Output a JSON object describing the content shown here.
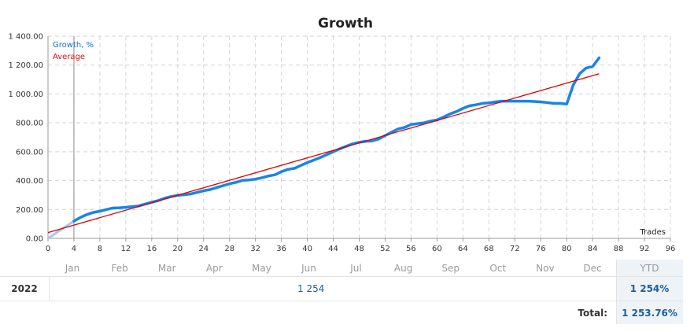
{
  "chart_data": {
    "type": "line",
    "title": "Growth",
    "xlabel": "Trades",
    "ylabel": "",
    "xlim": [
      0,
      96
    ],
    "ylim": [
      0,
      1400
    ],
    "xticks": [
      0,
      4,
      8,
      12,
      16,
      20,
      24,
      28,
      32,
      36,
      40,
      44,
      48,
      52,
      56,
      60,
      64,
      68,
      72,
      76,
      80,
      84,
      88,
      92,
      96
    ],
    "yticks": [
      "0.00",
      "200.00",
      "400.00",
      "600.00",
      "800.00",
      "1 000.00",
      "1 200.00",
      "1 400.00"
    ],
    "ytick_values": [
      0,
      200,
      400,
      600,
      800,
      1000,
      1200,
      1400
    ],
    "legend": [
      "Growth, %",
      "Average"
    ],
    "series": [
      {
        "name": "Growth, %",
        "color": "#1a84e8",
        "x": [
          0,
          2,
          4,
          5,
          6,
          7,
          8,
          9,
          10,
          11,
          12,
          13,
          14,
          15,
          16,
          17,
          18,
          19,
          20,
          21,
          22,
          23,
          24,
          25,
          26,
          27,
          28,
          29,
          30,
          31,
          32,
          33,
          34,
          35,
          36,
          37,
          38,
          39,
          40,
          41,
          42,
          43,
          44,
          45,
          46,
          47,
          48,
          49,
          50,
          51,
          52,
          53,
          54,
          55,
          56,
          57,
          58,
          59,
          60,
          61,
          62,
          63,
          64,
          65,
          66,
          67,
          68,
          69,
          70,
          71,
          72,
          73,
          74,
          75,
          76,
          77,
          78,
          79,
          80,
          81,
          82,
          83,
          84,
          85
        ],
        "values": [
          0,
          60,
          120,
          145,
          165,
          180,
          188,
          200,
          210,
          212,
          215,
          220,
          225,
          238,
          250,
          262,
          278,
          290,
          298,
          302,
          308,
          318,
          330,
          338,
          352,
          365,
          378,
          388,
          402,
          405,
          410,
          420,
          432,
          440,
          462,
          478,
          485,
          505,
          525,
          542,
          560,
          580,
          600,
          620,
          638,
          655,
          665,
          672,
          675,
          688,
          712,
          735,
          758,
          768,
          788,
          795,
          800,
          812,
          820,
          840,
          862,
          878,
          900,
          918,
          925,
          935,
          938,
          945,
          950,
          950,
          950,
          950,
          950,
          948,
          945,
          940,
          935,
          935,
          930,
          1060,
          1140,
          1180,
          1190,
          1250
        ]
      },
      {
        "name": "Average",
        "color": "#dd0000",
        "x": [
          0,
          85
        ],
        "values": [
          40,
          1140
        ]
      }
    ],
    "months": [
      "Jan",
      "Feb",
      "Mar",
      "Apr",
      "May",
      "Jun",
      "Jul",
      "Aug",
      "Sep",
      "Oct",
      "Nov",
      "Dec"
    ],
    "table": {
      "ytd_header": "YTD",
      "year": "2022",
      "year_value": "1 254",
      "ytd_value": "1 254%",
      "total_label": "Total:",
      "total_value": "1 253.76%"
    }
  }
}
